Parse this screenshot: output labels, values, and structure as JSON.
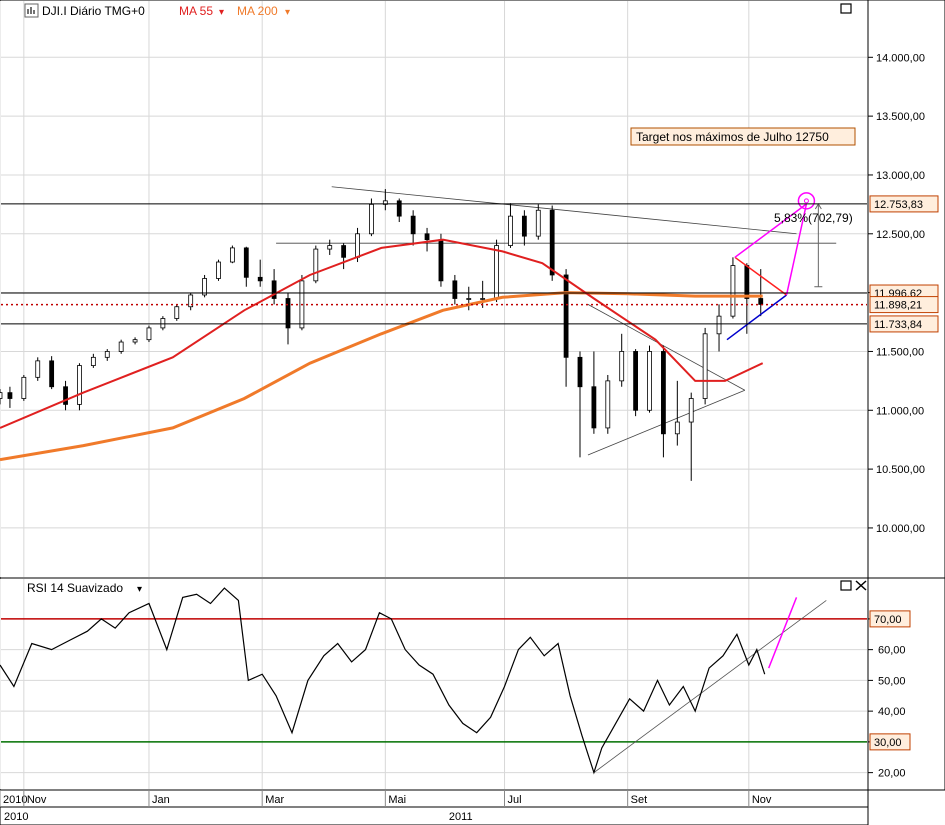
{
  "header": {
    "symbol": "DJI.I Diário TMG+0",
    "ma55_label": "MA 55",
    "ma200_label": "MA 200",
    "dropdown_glyph": "▾"
  },
  "rsi_header": {
    "label": "RSI 14 Suavizado",
    "dropdown_glyph": "▾"
  },
  "annotation": {
    "target_text": "Target nos máximos de Julho 12750",
    "distance_text": "5,83%(702,79)"
  },
  "colors": {
    "ma55": "#e02020",
    "ma200": "#f07a2a",
    "annotation": "#ff00ff",
    "rsi_upper": "#c00000",
    "rsi_lower": "#007000",
    "price_tag_bg": "#ffeedd",
    "price_tag_border": "#c04000",
    "triangle_up_leg": "#0000cc",
    "triangle_down_leg": "#ff2020"
  },
  "icons": {
    "symbol_icon": "chart-symbol-icon",
    "maximize": "maximize-icon",
    "close": "close-icon"
  },
  "chart_data": [
    {
      "type": "candlestick",
      "symbol": "DJI.I",
      "period": "Diário",
      "x_ticks": [
        {
          "label": "2010",
          "date": "2010-10-20"
        },
        {
          "label": "Nov",
          "date": "2010-11-01"
        },
        {
          "label": "Jan",
          "date": "2011-01-03"
        },
        {
          "label": "Mar",
          "date": "2011-03-01"
        },
        {
          "label": "Mai",
          "date": "2011-05-02"
        },
        {
          "label": "Jul",
          "date": "2011-07-01"
        },
        {
          "label": "Set",
          "date": "2011-09-01"
        },
        {
          "label": "Nov",
          "date": "2011-11-01"
        }
      ],
      "year_labels": [
        {
          "label": "2010",
          "date": "2010-10-20"
        },
        {
          "label": "2011",
          "date": "2011-06-01"
        }
      ],
      "y_ticks": [
        "10.000,00",
        "10.500,00",
        "11.000,00",
        "11.500,00",
        "12.000,00",
        "12.500,00",
        "13.000,00",
        "13.500,00",
        "14.000,00"
      ],
      "ylim": [
        9600,
        14300
      ],
      "xlim": [
        "2010-10-20",
        "2011-12-31"
      ],
      "grid": true,
      "price_series": [
        {
          "date": "2010-10-20",
          "open": 11100,
          "high": 11180,
          "low": 11050,
          "close": 11150
        },
        {
          "date": "2010-10-25",
          "open": 11150,
          "high": 11200,
          "low": 11020,
          "close": 11100
        },
        {
          "date": "2010-11-01",
          "open": 11100,
          "high": 11300,
          "low": 11080,
          "close": 11280
        },
        {
          "date": "2010-11-08",
          "open": 11280,
          "high": 11450,
          "low": 11250,
          "close": 11420
        },
        {
          "date": "2010-11-15",
          "open": 11420,
          "high": 11460,
          "low": 11180,
          "close": 11200
        },
        {
          "date": "2010-11-22",
          "open": 11200,
          "high": 11250,
          "low": 11000,
          "close": 11050
        },
        {
          "date": "2010-11-29",
          "open": 11050,
          "high": 11400,
          "low": 11000,
          "close": 11380
        },
        {
          "date": "2010-12-06",
          "open": 11380,
          "high": 11480,
          "low": 11360,
          "close": 11450
        },
        {
          "date": "2010-12-13",
          "open": 11450,
          "high": 11520,
          "low": 11420,
          "close": 11500
        },
        {
          "date": "2010-12-20",
          "open": 11500,
          "high": 11600,
          "low": 11480,
          "close": 11580
        },
        {
          "date": "2010-12-27",
          "open": 11580,
          "high": 11620,
          "low": 11560,
          "close": 11600
        },
        {
          "date": "2011-01-03",
          "open": 11600,
          "high": 11720,
          "low": 11580,
          "close": 11700
        },
        {
          "date": "2011-01-10",
          "open": 11700,
          "high": 11800,
          "low": 11680,
          "close": 11780
        },
        {
          "date": "2011-01-17",
          "open": 11780,
          "high": 11900,
          "low": 11760,
          "close": 11880
        },
        {
          "date": "2011-01-24",
          "open": 11880,
          "high": 12000,
          "low": 11850,
          "close": 11980
        },
        {
          "date": "2011-01-31",
          "open": 11980,
          "high": 12150,
          "low": 11960,
          "close": 12120
        },
        {
          "date": "2011-02-07",
          "open": 12120,
          "high": 12280,
          "low": 12100,
          "close": 12260
        },
        {
          "date": "2011-02-14",
          "open": 12260,
          "high": 12400,
          "low": 12250,
          "close": 12380
        },
        {
          "date": "2011-02-21",
          "open": 12380,
          "high": 12390,
          "low": 12050,
          "close": 12130
        },
        {
          "date": "2011-02-28",
          "open": 12130,
          "high": 12280,
          "low": 12050,
          "close": 12100
        },
        {
          "date": "2011-03-07",
          "open": 12100,
          "high": 12200,
          "low": 11900,
          "close": 11950
        },
        {
          "date": "2011-03-14",
          "open": 11950,
          "high": 12000,
          "low": 11560,
          "close": 11700
        },
        {
          "date": "2011-03-21",
          "open": 11700,
          "high": 12150,
          "low": 11680,
          "close": 12100
        },
        {
          "date": "2011-03-28",
          "open": 12100,
          "high": 12400,
          "low": 12080,
          "close": 12370
        },
        {
          "date": "2011-04-04",
          "open": 12370,
          "high": 12450,
          "low": 12320,
          "close": 12400
        },
        {
          "date": "2011-04-11",
          "open": 12400,
          "high": 12420,
          "low": 12200,
          "close": 12300
        },
        {
          "date": "2011-04-18",
          "open": 12300,
          "high": 12550,
          "low": 12260,
          "close": 12500
        },
        {
          "date": "2011-04-25",
          "open": 12500,
          "high": 12800,
          "low": 12480,
          "close": 12750
        },
        {
          "date": "2011-05-02",
          "open": 12750,
          "high": 12880,
          "low": 12700,
          "close": 12780
        },
        {
          "date": "2011-05-09",
          "open": 12780,
          "high": 12800,
          "low": 12600,
          "close": 12650
        },
        {
          "date": "2011-05-16",
          "open": 12650,
          "high": 12700,
          "low": 12400,
          "close": 12500
        },
        {
          "date": "2011-05-23",
          "open": 12500,
          "high": 12550,
          "low": 12350,
          "close": 12450
        },
        {
          "date": "2011-05-30",
          "open": 12450,
          "high": 12500,
          "low": 12050,
          "close": 12100
        },
        {
          "date": "2011-06-06",
          "open": 12100,
          "high": 12150,
          "low": 11900,
          "close": 11950
        },
        {
          "date": "2011-06-13",
          "open": 11950,
          "high": 12050,
          "low": 11850,
          "close": 11950
        },
        {
          "date": "2011-06-20",
          "open": 11950,
          "high": 12100,
          "low": 11870,
          "close": 11950
        },
        {
          "date": "2011-06-27",
          "open": 11950,
          "high": 12450,
          "low": 11920,
          "close": 12400
        },
        {
          "date": "2011-07-04",
          "open": 12400,
          "high": 12760,
          "low": 12380,
          "close": 12650
        },
        {
          "date": "2011-07-11",
          "open": 12650,
          "high": 12700,
          "low": 12400,
          "close": 12480
        },
        {
          "date": "2011-07-18",
          "open": 12480,
          "high": 12750,
          "low": 12450,
          "close": 12700
        },
        {
          "date": "2011-07-25",
          "open": 12700,
          "high": 12740,
          "low": 12100,
          "close": 12150
        },
        {
          "date": "2011-08-01",
          "open": 12150,
          "high": 12200,
          "low": 11200,
          "close": 11450
        },
        {
          "date": "2011-08-08",
          "open": 11450,
          "high": 11500,
          "low": 10600,
          "close": 11200
        },
        {
          "date": "2011-08-15",
          "open": 11200,
          "high": 11500,
          "low": 10800,
          "close": 10850
        },
        {
          "date": "2011-08-22",
          "open": 10850,
          "high": 11300,
          "low": 10800,
          "close": 11250
        },
        {
          "date": "2011-08-29",
          "open": 11250,
          "high": 11650,
          "low": 11200,
          "close": 11500
        },
        {
          "date": "2011-09-05",
          "open": 11500,
          "high": 11520,
          "low": 10950,
          "close": 11000
        },
        {
          "date": "2011-09-12",
          "open": 11000,
          "high": 11550,
          "low": 10980,
          "close": 11500
        },
        {
          "date": "2011-09-19",
          "open": 11500,
          "high": 11550,
          "low": 10600,
          "close": 10800
        },
        {
          "date": "2011-09-26",
          "open": 10800,
          "high": 11250,
          "low": 10700,
          "close": 10900
        },
        {
          "date": "2011-10-03",
          "open": 10900,
          "high": 11150,
          "low": 10400,
          "close": 11100
        },
        {
          "date": "2011-10-10",
          "open": 11100,
          "high": 11700,
          "low": 11050,
          "close": 11650
        },
        {
          "date": "2011-10-17",
          "open": 11650,
          "high": 11900,
          "low": 11500,
          "close": 11800
        },
        {
          "date": "2011-10-24",
          "open": 11800,
          "high": 12300,
          "low": 11780,
          "close": 12230
        },
        {
          "date": "2011-10-31",
          "open": 12230,
          "high": 12250,
          "low": 11650,
          "close": 11950
        },
        {
          "date": "2011-11-07",
          "open": 11950,
          "high": 12200,
          "low": 11800,
          "close": 11900
        }
      ],
      "ma55": [
        {
          "date": "2010-10-20",
          "value": 10850
        },
        {
          "date": "2010-12-01",
          "value": 11150
        },
        {
          "date": "2011-01-15",
          "value": 11450
        },
        {
          "date": "2011-02-20",
          "value": 11850
        },
        {
          "date": "2011-03-25",
          "value": 12150
        },
        {
          "date": "2011-04-30",
          "value": 12380
        },
        {
          "date": "2011-05-31",
          "value": 12450
        },
        {
          "date": "2011-06-30",
          "value": 12350
        },
        {
          "date": "2011-07-20",
          "value": 12250
        },
        {
          "date": "2011-08-15",
          "value": 11950
        },
        {
          "date": "2011-09-15",
          "value": 11600
        },
        {
          "date": "2011-10-05",
          "value": 11250
        },
        {
          "date": "2011-10-20",
          "value": 11250
        },
        {
          "date": "2011-11-08",
          "value": 11400
        }
      ],
      "ma200": [
        {
          "date": "2010-10-20",
          "value": 10580
        },
        {
          "date": "2010-12-01",
          "value": 10700
        },
        {
          "date": "2011-01-15",
          "value": 10850
        },
        {
          "date": "2011-02-20",
          "value": 11100
        },
        {
          "date": "2011-03-25",
          "value": 11400
        },
        {
          "date": "2011-04-30",
          "value": 11650
        },
        {
          "date": "2011-05-31",
          "value": 11850
        },
        {
          "date": "2011-06-30",
          "value": 11960
        },
        {
          "date": "2011-08-01",
          "value": 12000
        },
        {
          "date": "2011-09-01",
          "value": 11990
        },
        {
          "date": "2011-10-05",
          "value": 11970
        },
        {
          "date": "2011-11-08",
          "value": 11970
        }
      ],
      "price_tags": [
        {
          "label": "12.753,83",
          "value": 12753.83,
          "style": "solid"
        },
        {
          "label": "11.996,62",
          "value": 11996.62,
          "style": "solid"
        },
        {
          "label": "11.898,21",
          "value": 11898.21,
          "style": "dotted"
        },
        {
          "label": "11.733,84",
          "value": 11733.84,
          "style": "solid"
        }
      ],
      "annotations": [
        {
          "type": "text",
          "text": "Target nos máximos de Julho 12750",
          "value": 12750
        },
        {
          "type": "measure",
          "text": "5,83%(702,79)",
          "from": 12050,
          "to": 12753
        }
      ]
    },
    {
      "type": "line",
      "name": "RSI 14 Suavizado",
      "ylim": [
        15,
        82
      ],
      "y_ticks": [
        "20,00",
        "30,00",
        "40,00",
        "50,00",
        "60,00",
        "70,00"
      ],
      "levels": [
        {
          "label": "70,00",
          "value": 70
        },
        {
          "label": "30,00",
          "value": 30
        }
      ],
      "rsi": [
        {
          "date": "2010-10-20",
          "value": 55
        },
        {
          "date": "2010-10-27",
          "value": 48
        },
        {
          "date": "2010-11-05",
          "value": 62
        },
        {
          "date": "2010-11-15",
          "value": 60
        },
        {
          "date": "2010-11-24",
          "value": 63
        },
        {
          "date": "2010-12-03",
          "value": 66
        },
        {
          "date": "2010-12-10",
          "value": 70
        },
        {
          "date": "2010-12-17",
          "value": 67
        },
        {
          "date": "2010-12-24",
          "value": 72
        },
        {
          "date": "2011-01-03",
          "value": 75
        },
        {
          "date": "2011-01-12",
          "value": 60
        },
        {
          "date": "2011-01-20",
          "value": 77
        },
        {
          "date": "2011-01-27",
          "value": 78
        },
        {
          "date": "2011-02-03",
          "value": 75
        },
        {
          "date": "2011-02-10",
          "value": 80
        },
        {
          "date": "2011-02-17",
          "value": 76
        },
        {
          "date": "2011-02-22",
          "value": 50
        },
        {
          "date": "2011-03-01",
          "value": 52
        },
        {
          "date": "2011-03-08",
          "value": 45
        },
        {
          "date": "2011-03-16",
          "value": 33
        },
        {
          "date": "2011-03-24",
          "value": 50
        },
        {
          "date": "2011-04-01",
          "value": 58
        },
        {
          "date": "2011-04-08",
          "value": 62
        },
        {
          "date": "2011-04-15",
          "value": 56
        },
        {
          "date": "2011-04-22",
          "value": 60
        },
        {
          "date": "2011-04-29",
          "value": 72
        },
        {
          "date": "2011-05-05",
          "value": 70
        },
        {
          "date": "2011-05-12",
          "value": 60
        },
        {
          "date": "2011-05-19",
          "value": 55
        },
        {
          "date": "2011-05-26",
          "value": 52
        },
        {
          "date": "2011-06-03",
          "value": 42
        },
        {
          "date": "2011-06-10",
          "value": 36
        },
        {
          "date": "2011-06-17",
          "value": 33
        },
        {
          "date": "2011-06-24",
          "value": 38
        },
        {
          "date": "2011-07-01",
          "value": 48
        },
        {
          "date": "2011-07-08",
          "value": 60
        },
        {
          "date": "2011-07-14",
          "value": 64
        },
        {
          "date": "2011-07-21",
          "value": 58
        },
        {
          "date": "2011-07-28",
          "value": 62
        },
        {
          "date": "2011-08-03",
          "value": 45
        },
        {
          "date": "2011-08-09",
          "value": 32
        },
        {
          "date": "2011-08-15",
          "value": 20
        },
        {
          "date": "2011-08-19",
          "value": 28
        },
        {
          "date": "2011-08-26",
          "value": 36
        },
        {
          "date": "2011-09-02",
          "value": 44
        },
        {
          "date": "2011-09-09",
          "value": 40
        },
        {
          "date": "2011-09-16",
          "value": 50
        },
        {
          "date": "2011-09-22",
          "value": 42
        },
        {
          "date": "2011-09-29",
          "value": 48
        },
        {
          "date": "2011-10-05",
          "value": 40
        },
        {
          "date": "2011-10-12",
          "value": 54
        },
        {
          "date": "2011-10-19",
          "value": 58
        },
        {
          "date": "2011-10-26",
          "value": 65
        },
        {
          "date": "2011-11-01",
          "value": 55
        },
        {
          "date": "2011-11-05",
          "value": 60
        },
        {
          "date": "2011-11-09",
          "value": 52
        }
      ]
    }
  ]
}
